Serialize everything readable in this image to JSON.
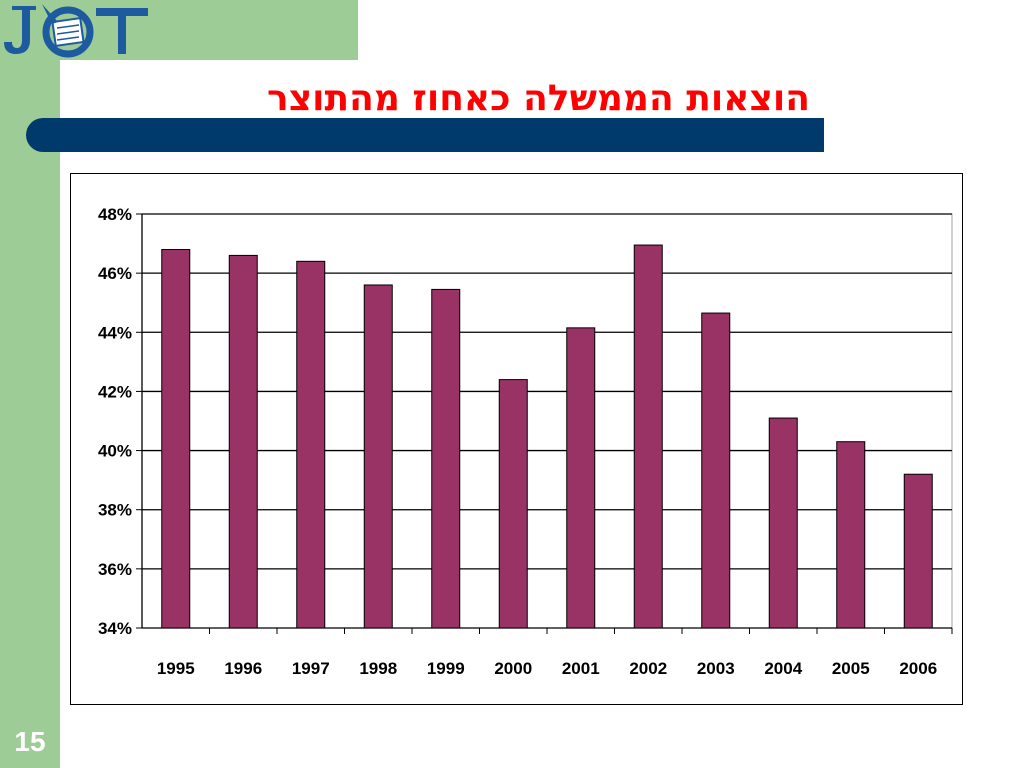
{
  "slide": {
    "logo_text": "JCT",
    "title": "הוצאות הממשלה כאחוז מהתוצר",
    "page_number": "15"
  },
  "colors": {
    "green": "#9dcc96",
    "title": "#ff0000",
    "bar_fill": "#993366",
    "title_bar": "#003a6c",
    "logo": "#1e5aa0"
  },
  "chart_data": {
    "type": "bar",
    "title": "",
    "xlabel": "",
    "ylabel": "",
    "categories": [
      "1995",
      "1996",
      "1997",
      "1998",
      "1999",
      "2000",
      "2001",
      "2002",
      "2003",
      "2004",
      "2005",
      "2006"
    ],
    "series": [
      {
        "values": [
          46.8,
          46.6,
          46.4,
          45.6,
          45.45,
          42.4,
          44.15,
          46.95,
          44.65,
          41.1,
          40.3,
          39.2
        ]
      }
    ],
    "ylim": [
      34,
      48
    ],
    "ytick_step": 2,
    "ytick_labels": [
      "34%",
      "36%",
      "38%",
      "40%",
      "42%",
      "44%",
      "46%",
      "48%"
    ],
    "grid": true,
    "legend": "none"
  }
}
